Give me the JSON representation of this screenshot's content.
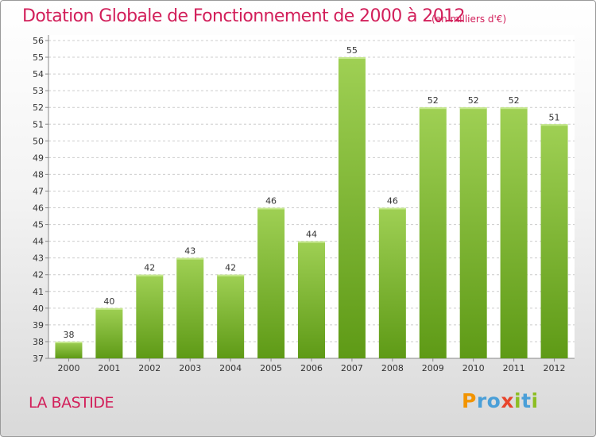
{
  "title": "Dotation Globale de Fonctionnement de 2000 à 2012",
  "subtitle": "(en milliers d'€)",
  "commune": "LA BASTIDE",
  "logo": {
    "letters": [
      "P",
      "r",
      "o",
      "x",
      "i",
      "t",
      "i"
    ],
    "colors": [
      "#f29400",
      "#4a9fd8",
      "#4a9fd8",
      "#e8452c",
      "#8cbe22",
      "#4a9fd8",
      "#8cbe22"
    ]
  },
  "colors": {
    "bar_top": "#9fd054",
    "bar_bottom": "#5e9a16",
    "title": "#d21f5a",
    "grid": "#cccccc"
  },
  "chart_data": {
    "type": "bar",
    "categories": [
      "2000",
      "2001",
      "2002",
      "2003",
      "2004",
      "2005",
      "2006",
      "2007",
      "2008",
      "2009",
      "2010",
      "2011",
      "2012"
    ],
    "values": [
      38,
      40,
      42,
      43,
      42,
      46,
      44,
      55,
      46,
      52,
      52,
      52,
      51
    ],
    "value_labels": [
      "38",
      "40",
      "42",
      "43",
      "42",
      "46",
      "44",
      "55",
      "46",
      "52",
      "52",
      "52",
      "51"
    ],
    "yticks": [
      "37",
      "38",
      "39",
      "40",
      "41",
      "42",
      "43",
      "44",
      "45",
      "46",
      "47",
      "48",
      "49",
      "50",
      "51",
      "52",
      "53",
      "54",
      "55",
      "56"
    ],
    "ylim": [
      37,
      56
    ],
    "grid": true
  }
}
